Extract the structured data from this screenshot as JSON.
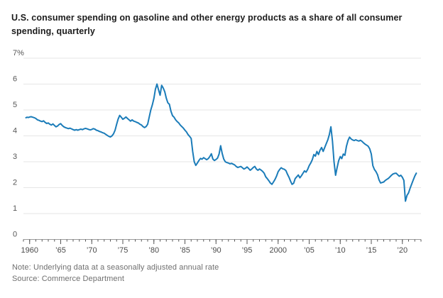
{
  "header": {
    "title_line1": "U.S. consumer spending on gasoline and other energy products as a share of all consumer",
    "title_line2": "spending, quarterly"
  },
  "footer": {
    "note": "Note: Underlying data at a seasonally adjusted annual rate",
    "source": "Source: Commerce Department"
  },
  "colors": {
    "line": "#1b7cb9",
    "grid": "#e6e6e6",
    "axis_baseline": "#9b9b9b",
    "tick": "#555555",
    "tick_label": "#4a4a4a",
    "y_label": "#565656",
    "title": "#1c1c1c",
    "footer_text": "#6f6f6f",
    "background": "#ffffff"
  },
  "chart_data": {
    "type": "line",
    "title": "U.S. consumer spending on gasoline and other energy products as a share of all consumer spending, quarterly",
    "unit": "percent of all consumer spending",
    "xlabel": "",
    "ylabel": "",
    "xlim": [
      1959,
      2023
    ],
    "ylim": [
      0,
      7
    ],
    "grid": "horizontal",
    "legend": "none",
    "y_ticks": [
      {
        "value": 7,
        "label": "7%"
      },
      {
        "value": 6,
        "label": "6"
      },
      {
        "value": 5,
        "label": "5"
      },
      {
        "value": 4,
        "label": "4"
      },
      {
        "value": 3,
        "label": "3"
      },
      {
        "value": 2,
        "label": "2"
      },
      {
        "value": 1,
        "label": "1"
      },
      {
        "value": 0,
        "label": "0"
      }
    ],
    "x_ticks_major": [
      {
        "value": 1960,
        "label": "1960"
      },
      {
        "value": 1965,
        "label": "’65"
      },
      {
        "value": 1970,
        "label": "’70"
      },
      {
        "value": 1975,
        "label": "’75"
      },
      {
        "value": 1980,
        "label": "’80"
      },
      {
        "value": 1985,
        "label": "’85"
      },
      {
        "value": 1990,
        "label": "’90"
      },
      {
        "value": 1995,
        "label": "’95"
      },
      {
        "value": 2000,
        "label": "2000"
      },
      {
        "value": 2005,
        "label": "’05"
      },
      {
        "value": 2010,
        "label": "’10"
      },
      {
        "value": 2015,
        "label": "’15"
      },
      {
        "value": 2020,
        "label": "’20"
      }
    ],
    "x_minor_tick_step": 1,
    "series": [
      {
        "name": "Gasoline and other energy products share of consumer spending",
        "color": "#1b7cb9",
        "points": [
          [
            1959.4,
            4.7
          ],
          [
            1959.6,
            4.72
          ],
          [
            1959.8,
            4.71
          ],
          [
            1960,
            4.73
          ],
          [
            1960.25,
            4.74
          ],
          [
            1960.5,
            4.72
          ],
          [
            1960.75,
            4.7
          ],
          [
            1961,
            4.67
          ],
          [
            1961.25,
            4.62
          ],
          [
            1961.5,
            4.6
          ],
          [
            1961.75,
            4.57
          ],
          [
            1962,
            4.55
          ],
          [
            1962.25,
            4.58
          ],
          [
            1962.5,
            4.52
          ],
          [
            1962.75,
            4.48
          ],
          [
            1963,
            4.5
          ],
          [
            1963.25,
            4.45
          ],
          [
            1963.5,
            4.42
          ],
          [
            1963.75,
            4.46
          ],
          [
            1964,
            4.4
          ],
          [
            1964.25,
            4.35
          ],
          [
            1964.5,
            4.38
          ],
          [
            1964.75,
            4.44
          ],
          [
            1965,
            4.47
          ],
          [
            1965.25,
            4.4
          ],
          [
            1965.5,
            4.35
          ],
          [
            1965.75,
            4.32
          ],
          [
            1966,
            4.3
          ],
          [
            1966.25,
            4.28
          ],
          [
            1966.5,
            4.3
          ],
          [
            1966.75,
            4.27
          ],
          [
            1967,
            4.24
          ],
          [
            1967.25,
            4.22
          ],
          [
            1967.5,
            4.24
          ],
          [
            1967.75,
            4.22
          ],
          [
            1968,
            4.24
          ],
          [
            1968.25,
            4.26
          ],
          [
            1968.5,
            4.24
          ],
          [
            1968.75,
            4.27
          ],
          [
            1969,
            4.29
          ],
          [
            1969.25,
            4.27
          ],
          [
            1969.5,
            4.25
          ],
          [
            1969.75,
            4.23
          ],
          [
            1970,
            4.25
          ],
          [
            1970.25,
            4.28
          ],
          [
            1970.5,
            4.26
          ],
          [
            1970.75,
            4.22
          ],
          [
            1971,
            4.2
          ],
          [
            1971.25,
            4.17
          ],
          [
            1971.5,
            4.15
          ],
          [
            1971.75,
            4.12
          ],
          [
            1972,
            4.1
          ],
          [
            1972.25,
            4.06
          ],
          [
            1972.5,
            4.02
          ],
          [
            1972.75,
            3.98
          ],
          [
            1973,
            3.96
          ],
          [
            1973.25,
            4.0
          ],
          [
            1973.5,
            4.08
          ],
          [
            1973.75,
            4.22
          ],
          [
            1974,
            4.45
          ],
          [
            1974.25,
            4.65
          ],
          [
            1974.5,
            4.79
          ],
          [
            1974.75,
            4.72
          ],
          [
            1975,
            4.64
          ],
          [
            1975.25,
            4.68
          ],
          [
            1975.5,
            4.73
          ],
          [
            1975.75,
            4.67
          ],
          [
            1976,
            4.62
          ],
          [
            1976.25,
            4.57
          ],
          [
            1976.5,
            4.62
          ],
          [
            1976.75,
            4.57
          ],
          [
            1977,
            4.55
          ],
          [
            1977.25,
            4.52
          ],
          [
            1977.5,
            4.5
          ],
          [
            1977.75,
            4.45
          ],
          [
            1978,
            4.42
          ],
          [
            1978.25,
            4.36
          ],
          [
            1978.5,
            4.32
          ],
          [
            1978.75,
            4.36
          ],
          [
            1979,
            4.45
          ],
          [
            1979.25,
            4.73
          ],
          [
            1979.5,
            5.0
          ],
          [
            1979.75,
            5.2
          ],
          [
            1980,
            5.45
          ],
          [
            1980.25,
            5.8
          ],
          [
            1980.5,
            6.0
          ],
          [
            1980.75,
            5.78
          ],
          [
            1981,
            5.57
          ],
          [
            1981.25,
            5.95
          ],
          [
            1981.5,
            5.85
          ],
          [
            1981.75,
            5.7
          ],
          [
            1982,
            5.45
          ],
          [
            1982.25,
            5.28
          ],
          [
            1982.5,
            5.22
          ],
          [
            1982.75,
            4.95
          ],
          [
            1983,
            4.78
          ],
          [
            1983.25,
            4.72
          ],
          [
            1983.5,
            4.62
          ],
          [
            1983.75,
            4.55
          ],
          [
            1984,
            4.5
          ],
          [
            1984.25,
            4.42
          ],
          [
            1984.5,
            4.36
          ],
          [
            1984.75,
            4.3
          ],
          [
            1985,
            4.22
          ],
          [
            1985.25,
            4.15
          ],
          [
            1985.5,
            4.05
          ],
          [
            1985.75,
            3.98
          ],
          [
            1986,
            3.9
          ],
          [
            1986.25,
            3.4
          ],
          [
            1986.5,
            3.0
          ],
          [
            1986.75,
            2.86
          ],
          [
            1987,
            2.95
          ],
          [
            1987.25,
            3.05
          ],
          [
            1987.5,
            3.13
          ],
          [
            1987.75,
            3.1
          ],
          [
            1988,
            3.16
          ],
          [
            1988.25,
            3.12
          ],
          [
            1988.5,
            3.08
          ],
          [
            1988.75,
            3.12
          ],
          [
            1989,
            3.2
          ],
          [
            1989.25,
            3.31
          ],
          [
            1989.5,
            3.1
          ],
          [
            1989.75,
            3.05
          ],
          [
            1990,
            3.09
          ],
          [
            1990.25,
            3.14
          ],
          [
            1990.5,
            3.3
          ],
          [
            1990.75,
            3.62
          ],
          [
            1991,
            3.32
          ],
          [
            1991.25,
            3.1
          ],
          [
            1991.5,
            3.0
          ],
          [
            1991.75,
            2.97
          ],
          [
            1992,
            2.95
          ],
          [
            1992.25,
            2.92
          ],
          [
            1992.5,
            2.94
          ],
          [
            1992.75,
            2.91
          ],
          [
            1993,
            2.88
          ],
          [
            1993.25,
            2.82
          ],
          [
            1993.5,
            2.78
          ],
          [
            1993.75,
            2.8
          ],
          [
            1994,
            2.82
          ],
          [
            1994.25,
            2.77
          ],
          [
            1994.5,
            2.72
          ],
          [
            1994.75,
            2.75
          ],
          [
            1995,
            2.8
          ],
          [
            1995.25,
            2.74
          ],
          [
            1995.5,
            2.67
          ],
          [
            1995.75,
            2.72
          ],
          [
            1996,
            2.78
          ],
          [
            1996.25,
            2.82
          ],
          [
            1996.5,
            2.72
          ],
          [
            1996.75,
            2.67
          ],
          [
            1997,
            2.72
          ],
          [
            1997.25,
            2.68
          ],
          [
            1997.5,
            2.63
          ],
          [
            1997.75,
            2.56
          ],
          [
            1998,
            2.42
          ],
          [
            1998.25,
            2.35
          ],
          [
            1998.5,
            2.27
          ],
          [
            1998.75,
            2.18
          ],
          [
            1999,
            2.13
          ],
          [
            1999.25,
            2.22
          ],
          [
            1999.5,
            2.32
          ],
          [
            1999.75,
            2.45
          ],
          [
            2000,
            2.62
          ],
          [
            2000.25,
            2.7
          ],
          [
            2000.5,
            2.77
          ],
          [
            2000.75,
            2.73
          ],
          [
            2001,
            2.71
          ],
          [
            2001.25,
            2.66
          ],
          [
            2001.5,
            2.52
          ],
          [
            2001.75,
            2.4
          ],
          [
            2002,
            2.25
          ],
          [
            2002.25,
            2.13
          ],
          [
            2002.5,
            2.17
          ],
          [
            2002.75,
            2.35
          ],
          [
            2003,
            2.42
          ],
          [
            2003.25,
            2.49
          ],
          [
            2003.5,
            2.38
          ],
          [
            2003.75,
            2.46
          ],
          [
            2004,
            2.56
          ],
          [
            2004.25,
            2.65
          ],
          [
            2004.5,
            2.6
          ],
          [
            2004.75,
            2.7
          ],
          [
            2005,
            2.85
          ],
          [
            2005.25,
            2.95
          ],
          [
            2005.5,
            3.08
          ],
          [
            2005.75,
            3.28
          ],
          [
            2006,
            3.22
          ],
          [
            2006.25,
            3.4
          ],
          [
            2006.5,
            3.28
          ],
          [
            2006.75,
            3.45
          ],
          [
            2007,
            3.55
          ],
          [
            2007.25,
            3.4
          ],
          [
            2007.5,
            3.55
          ],
          [
            2007.75,
            3.7
          ],
          [
            2008,
            3.85
          ],
          [
            2008.25,
            4.05
          ],
          [
            2008.5,
            4.35
          ],
          [
            2008.75,
            3.8
          ],
          [
            2009,
            3.0
          ],
          [
            2009.25,
            2.48
          ],
          [
            2009.5,
            2.78
          ],
          [
            2009.75,
            3.05
          ],
          [
            2010,
            3.2
          ],
          [
            2010.25,
            3.12
          ],
          [
            2010.5,
            3.3
          ],
          [
            2010.75,
            3.25
          ],
          [
            2011,
            3.6
          ],
          [
            2011.25,
            3.82
          ],
          [
            2011.5,
            3.95
          ],
          [
            2011.75,
            3.88
          ],
          [
            2012,
            3.84
          ],
          [
            2012.25,
            3.82
          ],
          [
            2012.5,
            3.85
          ],
          [
            2012.75,
            3.82
          ],
          [
            2013,
            3.8
          ],
          [
            2013.25,
            3.83
          ],
          [
            2013.5,
            3.79
          ],
          [
            2013.75,
            3.73
          ],
          [
            2014,
            3.68
          ],
          [
            2014.25,
            3.64
          ],
          [
            2014.5,
            3.6
          ],
          [
            2014.75,
            3.5
          ],
          [
            2015,
            3.3
          ],
          [
            2015.25,
            2.85
          ],
          [
            2015.5,
            2.7
          ],
          [
            2015.75,
            2.62
          ],
          [
            2016,
            2.5
          ],
          [
            2016.25,
            2.3
          ],
          [
            2016.5,
            2.18
          ],
          [
            2016.75,
            2.2
          ],
          [
            2017,
            2.22
          ],
          [
            2017.25,
            2.28
          ],
          [
            2017.5,
            2.32
          ],
          [
            2017.75,
            2.36
          ],
          [
            2018,
            2.42
          ],
          [
            2018.25,
            2.48
          ],
          [
            2018.5,
            2.53
          ],
          [
            2018.75,
            2.55
          ],
          [
            2019,
            2.56
          ],
          [
            2019.25,
            2.5
          ],
          [
            2019.5,
            2.44
          ],
          [
            2019.75,
            2.48
          ],
          [
            2020,
            2.4
          ],
          [
            2020.25,
            2.28
          ],
          [
            2020.5,
            1.48
          ],
          [
            2020.75,
            1.7
          ],
          [
            2021,
            1.8
          ],
          [
            2021.25,
            1.98
          ],
          [
            2021.5,
            2.14
          ],
          [
            2021.75,
            2.3
          ],
          [
            2022,
            2.45
          ],
          [
            2022.25,
            2.56
          ]
        ]
      }
    ]
  }
}
